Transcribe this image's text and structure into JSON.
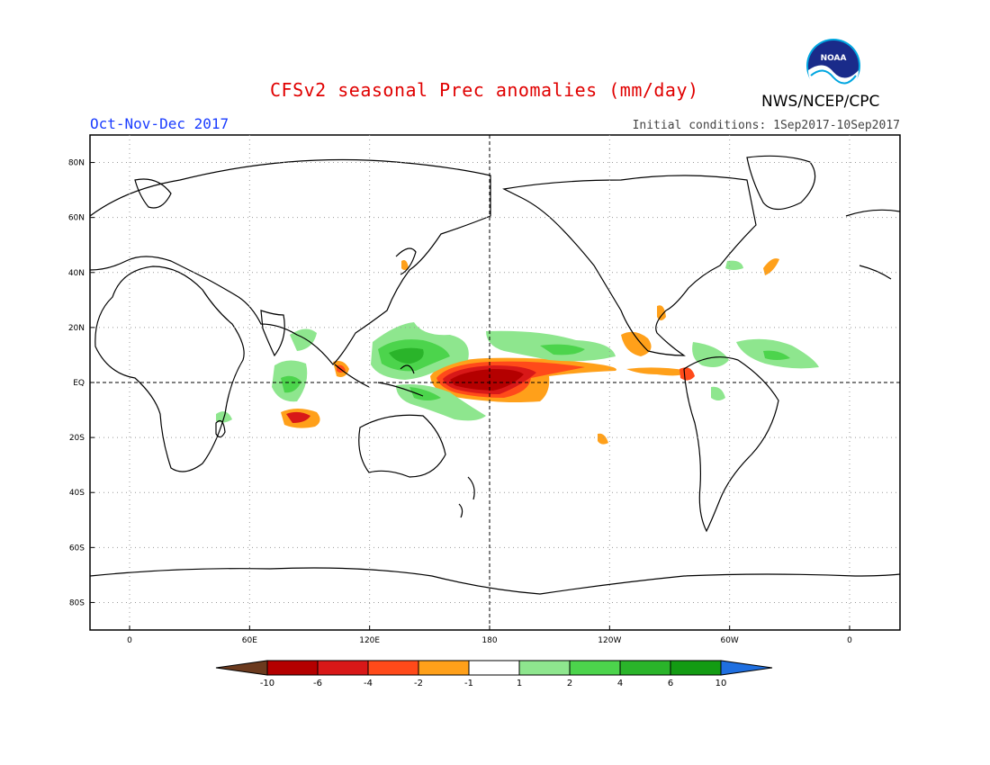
{
  "title": "CFSv2 seasonal Prec anomalies (mm/day)",
  "agency": "NWS/NCEP/CPC",
  "logo_text": "NOAA",
  "season": "Oct-Nov-Dec 2017",
  "initial_conditions": "Initial conditions: 1Sep2017-10Sep2017",
  "lat_labels": [
    "80N",
    "60N",
    "40N",
    "20N",
    "EQ",
    "20S",
    "40S",
    "60S",
    "80S"
  ],
  "lon_labels": [
    "0",
    "60E",
    "120E",
    "180",
    "120W",
    "60W",
    "0"
  ],
  "colorbar": {
    "labels": [
      "-10",
      "-6",
      "-4",
      "-2",
      "-1",
      "1",
      "2",
      "4",
      "6",
      "10"
    ],
    "colors": [
      "#6b3a1e",
      "#b40000",
      "#d81818",
      "#ff4a1a",
      "#ffa01a",
      "#ffffff",
      "#8ee68e",
      "#4cd44c",
      "#2ab42a",
      "#139b13",
      "#1f6fe0"
    ]
  },
  "map": {
    "land_outline_color": "#000000",
    "anomalies": [
      {
        "region": "central equatorial Pacific",
        "value": -8,
        "color": "#b40000"
      },
      {
        "region": "equatorial Pacific east of dateline",
        "value": -3,
        "color": "#ff4a1a"
      },
      {
        "region": "Philippines / western Pacific",
        "value": 3,
        "color": "#4cd44c"
      },
      {
        "region": "Indonesia / New Guinea",
        "value": 3,
        "color": "#4cd44c"
      },
      {
        "region": "central Indian Ocean",
        "value": 2,
        "color": "#8ee68e"
      },
      {
        "region": "southern Indian Ocean",
        "value": -3,
        "color": "#ff4a1a"
      },
      {
        "region": "Central America / Caribbean",
        "value": -2,
        "color": "#ffa01a"
      },
      {
        "region": "northern South America",
        "value": 2,
        "color": "#8ee68e"
      },
      {
        "region": "tropical Atlantic",
        "value": 2,
        "color": "#8ee68e"
      },
      {
        "region": "northeast Pacific (Hawaii area)",
        "value": 2,
        "color": "#8ee68e"
      }
    ]
  }
}
